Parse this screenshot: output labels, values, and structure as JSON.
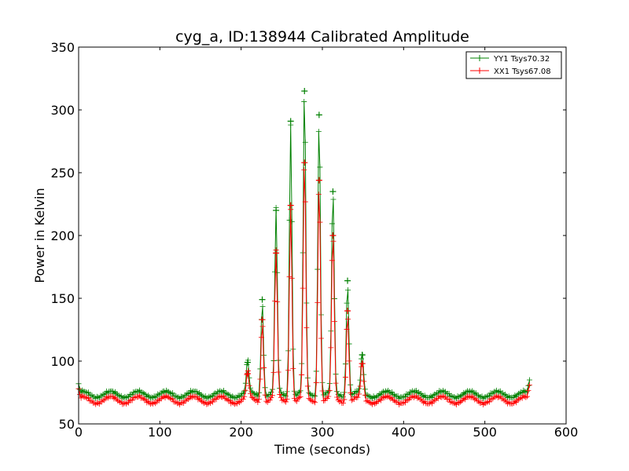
{
  "chart_data": {
    "type": "line",
    "title": "cyg_a, ID:138944 Calibrated Amplitude",
    "xlabel": "Time (seconds)",
    "ylabel": "Power in Kelvin",
    "xlim": [
      0,
      600
    ],
    "ylim": [
      50,
      350
    ],
    "xticks": [
      0,
      100,
      200,
      300,
      400,
      500,
      600
    ],
    "yticks": [
      50,
      100,
      150,
      200,
      250,
      300,
      350
    ],
    "grid": false,
    "legend_position": "top-right",
    "series": [
      {
        "name": "YY1 Tsys70.32",
        "color": "#008000",
        "marker": "+",
        "x_start": 0,
        "x_end": 555,
        "sample_step": 1.5,
        "baseline_mean": 73.5,
        "baseline_ripple": 2.5,
        "ripple_period_s": 34,
        "endpoint_values": {
          "start": 82,
          "end": 85
        },
        "peaks": [
          {
            "x": 208,
            "y": 99
          },
          {
            "x": 226,
            "y": 149
          },
          {
            "x": 243,
            "y": 220
          },
          {
            "x": 261,
            "y": 291
          },
          {
            "x": 278,
            "y": 315
          },
          {
            "x": 296,
            "y": 296
          },
          {
            "x": 313,
            "y": 235
          },
          {
            "x": 331,
            "y": 164
          },
          {
            "x": 349,
            "y": 105
          }
        ]
      },
      {
        "name": "XX1 Tsys67.08",
        "color": "#ff0000",
        "marker": "+",
        "x_start": 0,
        "x_end": 555,
        "sample_step": 1.5,
        "baseline_mean": 69,
        "baseline_ripple": 2.8,
        "ripple_period_s": 34,
        "endpoint_values": {
          "start": 78,
          "end": 81
        },
        "peaks": [
          {
            "x": 208,
            "y": 90
          },
          {
            "x": 226,
            "y": 133
          },
          {
            "x": 243,
            "y": 186
          },
          {
            "x": 261,
            "y": 224
          },
          {
            "x": 278,
            "y": 258
          },
          {
            "x": 296,
            "y": 244
          },
          {
            "x": 313,
            "y": 200
          },
          {
            "x": 331,
            "y": 140
          },
          {
            "x": 349,
            "y": 98
          }
        ]
      }
    ]
  }
}
